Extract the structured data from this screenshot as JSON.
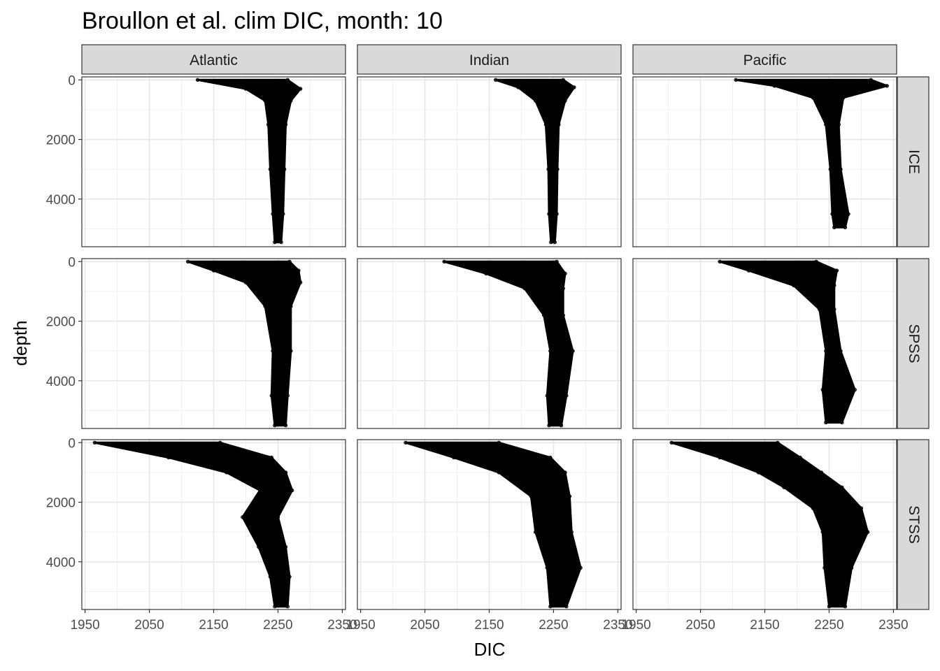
{
  "chart_data": {
    "type": "scatter",
    "title": "Broullon et al. clim DIC, month: 10",
    "xlabel": "DIC",
    "ylabel": "depth",
    "xlim": [
      1945,
      2355
    ],
    "ylim": [
      -100,
      5600
    ],
    "x_ticks": [
      1950,
      2050,
      2150,
      2250,
      2350
    ],
    "x_tick_labels": [
      "1950",
      "2050",
      "2150",
      "2250",
      "2350"
    ],
    "y_ticks": [
      0,
      2000,
      4000
    ],
    "y_tick_labels": [
      "0",
      "2000",
      "4000"
    ],
    "y_reversed": true,
    "grid": true,
    "point_color": "#000000",
    "columns": [
      "Atlantic",
      "Indian",
      "Pacific"
    ],
    "rows": [
      "ICE",
      "SPSS",
      "STSS"
    ],
    "panels": [
      {
        "column": "Atlantic",
        "row": "ICE",
        "profile": [
          {
            "depth": 0,
            "min": 2125,
            "max": 2265
          },
          {
            "depth": 300,
            "min": 2200,
            "max": 2285
          },
          {
            "depth": 700,
            "min": 2230,
            "max": 2270
          },
          {
            "depth": 1500,
            "min": 2235,
            "max": 2262
          },
          {
            "depth": 3000,
            "min": 2238,
            "max": 2260
          },
          {
            "depth": 4500,
            "min": 2242,
            "max": 2258
          },
          {
            "depth": 5450,
            "min": 2245,
            "max": 2255
          }
        ]
      },
      {
        "column": "Indian",
        "row": "ICE",
        "profile": [
          {
            "depth": 0,
            "min": 2160,
            "max": 2265
          },
          {
            "depth": 250,
            "min": 2195,
            "max": 2282
          },
          {
            "depth": 700,
            "min": 2222,
            "max": 2268
          },
          {
            "depth": 1500,
            "min": 2238,
            "max": 2258
          },
          {
            "depth": 3000,
            "min": 2242,
            "max": 2256
          },
          {
            "depth": 4500,
            "min": 2243,
            "max": 2255
          },
          {
            "depth": 5450,
            "min": 2246,
            "max": 2252
          }
        ]
      },
      {
        "column": "Pacific",
        "row": "ICE",
        "profile": [
          {
            "depth": 0,
            "min": 2105,
            "max": 2315
          },
          {
            "depth": 200,
            "min": 2165,
            "max": 2340
          },
          {
            "depth": 600,
            "min": 2225,
            "max": 2272
          },
          {
            "depth": 1500,
            "min": 2245,
            "max": 2265
          },
          {
            "depth": 3000,
            "min": 2252,
            "max": 2268
          },
          {
            "depth": 4500,
            "min": 2255,
            "max": 2280
          },
          {
            "depth": 4950,
            "min": 2258,
            "max": 2275
          }
        ]
      },
      {
        "column": "Atlantic",
        "row": "SPSS",
        "profile": [
          {
            "depth": 0,
            "min": 2110,
            "max": 2268
          },
          {
            "depth": 300,
            "min": 2150,
            "max": 2282
          },
          {
            "depth": 700,
            "min": 2200,
            "max": 2285
          },
          {
            "depth": 1500,
            "min": 2230,
            "max": 2270
          },
          {
            "depth": 3000,
            "min": 2242,
            "max": 2270
          },
          {
            "depth": 4500,
            "min": 2240,
            "max": 2265
          },
          {
            "depth": 5500,
            "min": 2245,
            "max": 2262
          }
        ]
      },
      {
        "column": "Indian",
        "row": "SPSS",
        "profile": [
          {
            "depth": 0,
            "min": 2080,
            "max": 2255
          },
          {
            "depth": 400,
            "min": 2145,
            "max": 2268
          },
          {
            "depth": 900,
            "min": 2205,
            "max": 2265
          },
          {
            "depth": 1800,
            "min": 2235,
            "max": 2265
          },
          {
            "depth": 3000,
            "min": 2245,
            "max": 2280
          },
          {
            "depth": 4500,
            "min": 2240,
            "max": 2270
          },
          {
            "depth": 5500,
            "min": 2243,
            "max": 2262
          }
        ]
      },
      {
        "column": "Pacific",
        "row": "SPSS",
        "profile": [
          {
            "depth": 0,
            "min": 2080,
            "max": 2230
          },
          {
            "depth": 300,
            "min": 2125,
            "max": 2262
          },
          {
            "depth": 800,
            "min": 2195,
            "max": 2258
          },
          {
            "depth": 1600,
            "min": 2235,
            "max": 2258
          },
          {
            "depth": 3000,
            "min": 2245,
            "max": 2268
          },
          {
            "depth": 4300,
            "min": 2240,
            "max": 2290
          },
          {
            "depth": 5400,
            "min": 2245,
            "max": 2270
          }
        ]
      },
      {
        "column": "Atlantic",
        "row": "STSS",
        "profile": [
          {
            "depth": 0,
            "min": 1965,
            "max": 2160
          },
          {
            "depth": 500,
            "min": 2080,
            "max": 2240
          },
          {
            "depth": 1000,
            "min": 2170,
            "max": 2262
          },
          {
            "depth": 1600,
            "min": 2222,
            "max": 2272
          },
          {
            "depth": 2500,
            "min": 2195,
            "max": 2250
          },
          {
            "depth": 3500,
            "min": 2220,
            "max": 2262
          },
          {
            "depth": 4500,
            "min": 2238,
            "max": 2268
          },
          {
            "depth": 5500,
            "min": 2245,
            "max": 2265
          }
        ]
      },
      {
        "column": "Indian",
        "row": "STSS",
        "profile": [
          {
            "depth": 0,
            "min": 2020,
            "max": 2165
          },
          {
            "depth": 500,
            "min": 2095,
            "max": 2245
          },
          {
            "depth": 1000,
            "min": 2165,
            "max": 2268
          },
          {
            "depth": 1800,
            "min": 2215,
            "max": 2275
          },
          {
            "depth": 3000,
            "min": 2222,
            "max": 2278
          },
          {
            "depth": 4200,
            "min": 2240,
            "max": 2292
          },
          {
            "depth": 5500,
            "min": 2245,
            "max": 2270
          }
        ]
      },
      {
        "column": "Pacific",
        "row": "STSS",
        "profile": [
          {
            "depth": 0,
            "min": 2005,
            "max": 2170
          },
          {
            "depth": 500,
            "min": 2080,
            "max": 2205
          },
          {
            "depth": 1000,
            "min": 2140,
            "max": 2238
          },
          {
            "depth": 1500,
            "min": 2180,
            "max": 2270
          },
          {
            "depth": 2200,
            "min": 2225,
            "max": 2300
          },
          {
            "depth": 3000,
            "min": 2240,
            "max": 2310
          },
          {
            "depth": 4200,
            "min": 2243,
            "max": 2285
          },
          {
            "depth": 5500,
            "min": 2250,
            "max": 2275
          }
        ]
      }
    ]
  }
}
